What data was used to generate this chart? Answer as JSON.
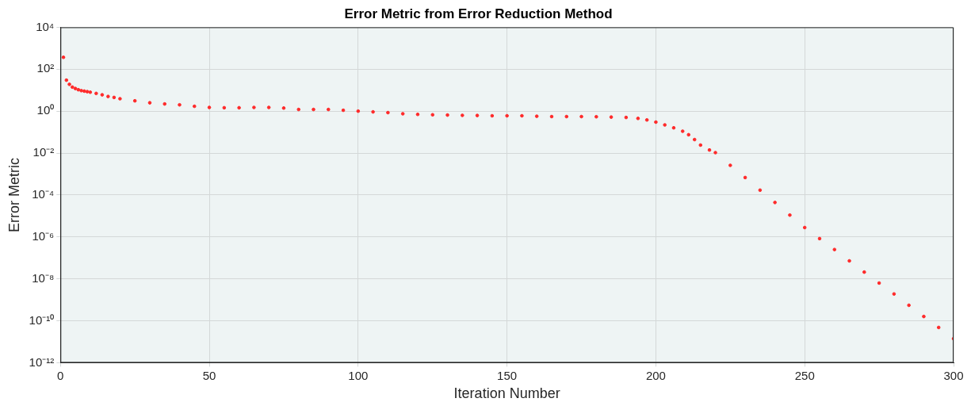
{
  "chart_data": {
    "type": "scatter",
    "title": "Error Metric from Error Reduction Method",
    "xlabel": "Iteration Number",
    "ylabel": "Error Metric",
    "log": "y",
    "grid": true,
    "legend": false,
    "marker": "circle",
    "xlim": [
      0,
      300
    ],
    "xticks": [
      0,
      50,
      100,
      150,
      200,
      250,
      300
    ],
    "ylim": [
      1e-12,
      10000
    ],
    "yticks": [
      {
        "value": 1e-12,
        "label": "10⁻¹²"
      },
      {
        "value": 1e-10,
        "label": "10⁻¹⁰"
      },
      {
        "value": 1e-08,
        "label": "10⁻⁸"
      },
      {
        "value": 1e-06,
        "label": "10⁻⁶"
      },
      {
        "value": 0.0001,
        "label": "10⁻⁴"
      },
      {
        "value": 0.01,
        "label": "10⁻²"
      },
      {
        "value": 1,
        "label": "10⁰"
      },
      {
        "value": 100,
        "label": "10²"
      },
      {
        "value": 10000,
        "label": "10⁴"
      }
    ],
    "series": [
      {
        "color": "#ff2a2a",
        "x": [
          1,
          2,
          3,
          4,
          5,
          6,
          7,
          8,
          9,
          10,
          12,
          14,
          16,
          18,
          20,
          25,
          30,
          35,
          40,
          45,
          50,
          55,
          60,
          65,
          70,
          75,
          80,
          85,
          90,
          95,
          100,
          105,
          110,
          115,
          120,
          125,
          130,
          135,
          140,
          145,
          150,
          155,
          160,
          165,
          170,
          175,
          180,
          185,
          190,
          194,
          197,
          200,
          203,
          206,
          209,
          211,
          213,
          215,
          218,
          220,
          225,
          230,
          235,
          240,
          245,
          250,
          255,
          260,
          265,
          270,
          275,
          280,
          285,
          290,
          295,
          300
        ],
        "values": [
          370,
          30,
          19,
          14,
          12,
          10.5,
          9.5,
          9,
          8.5,
          8,
          7,
          6,
          5,
          4.5,
          3.9,
          3.1,
          2.5,
          2.2,
          2,
          1.7,
          1.5,
          1.45,
          1.45,
          1.5,
          1.5,
          1.4,
          1.2,
          1.2,
          1.2,
          1.1,
          1.0,
          0.92,
          0.85,
          0.75,
          0.7,
          0.67,
          0.65,
          0.63,
          0.62,
          0.6,
          0.6,
          0.6,
          0.57,
          0.55,
          0.55,
          0.55,
          0.54,
          0.52,
          0.5,
          0.45,
          0.38,
          0.3,
          0.22,
          0.16,
          0.11,
          0.075,
          0.044,
          0.024,
          0.014,
          0.0105,
          0.0026,
          0.00068,
          0.00017,
          4.4e-05,
          1.1e-05,
          2.8e-06,
          8.3e-07,
          2.5e-07,
          7.2e-08,
          2.1e-08,
          6.3e-09,
          1.9e-09,
          5.5e-10,
          1.6e-10,
          4.8e-11,
          1.4e-11
        ]
      }
    ]
  }
}
